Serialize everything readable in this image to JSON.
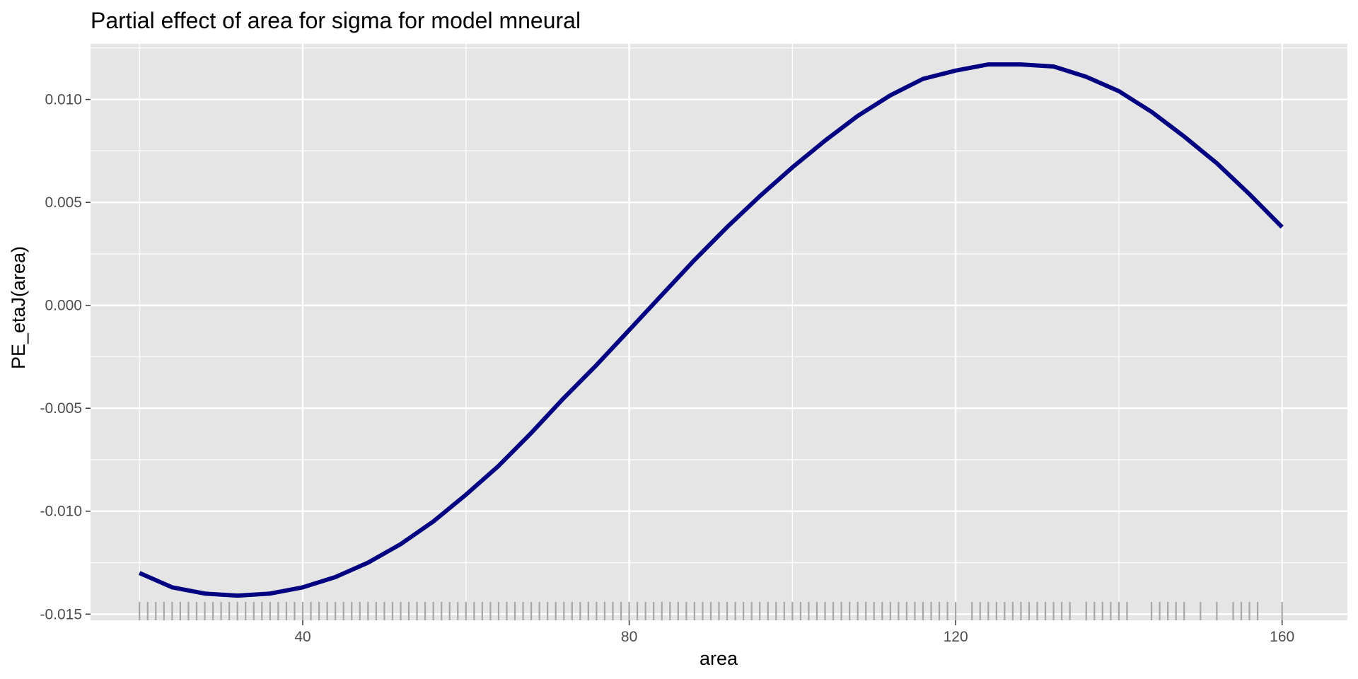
{
  "chart_data": {
    "type": "line",
    "title": "Partial effect of area for sigma for model mneural",
    "xlabel": "area",
    "ylabel": "PE_etaJ(area)",
    "xlim": [
      14,
      168
    ],
    "ylim": [
      -0.0153,
      0.0127
    ],
    "x_ticks": [
      40,
      80,
      120,
      160
    ],
    "y_ticks": [
      -0.015,
      -0.01,
      -0.005,
      0.0,
      0.005,
      0.01
    ],
    "x_tick_labels": [
      "40",
      "80",
      "120",
      "160"
    ],
    "y_tick_labels": [
      "-0.015",
      "-0.010",
      "-0.005",
      "0.000",
      "0.005",
      "0.010"
    ],
    "grid": true,
    "legend": "none",
    "colors": {
      "line": "#000080",
      "panel": "#e5e5e5",
      "grid": "#ffffff",
      "rug": "#a6a6a6",
      "tick_label": "#4d4d4d"
    },
    "series": [
      {
        "x": [
          20,
          24,
          28,
          32,
          36,
          40,
          44,
          48,
          52,
          56,
          60,
          64,
          68,
          72,
          76,
          80,
          84,
          88,
          92,
          96,
          100,
          104,
          108,
          112,
          116,
          120,
          124,
          128,
          132,
          136,
          140,
          144,
          148,
          152,
          156,
          160
        ],
        "values": [
          -0.013,
          -0.0137,
          -0.014,
          -0.0141,
          -0.014,
          -0.0137,
          -0.0132,
          -0.0125,
          -0.0116,
          -0.0105,
          -0.0092,
          -0.0078,
          -0.0062,
          -0.0045,
          -0.0029,
          -0.0012,
          0.0005,
          0.0022,
          0.0038,
          0.0053,
          0.0067,
          0.008,
          0.0092,
          0.0102,
          0.011,
          0.0114,
          0.0117,
          0.0117,
          0.0116,
          0.0111,
          0.0104,
          0.0094,
          0.0082,
          0.0069,
          0.0054,
          0.0038
        ]
      }
    ],
    "rug": [
      20,
      21,
      22,
      23,
      24,
      25,
      26,
      27,
      28,
      29,
      30,
      31,
      32,
      33,
      34,
      35,
      36,
      37,
      38,
      39,
      40,
      41,
      42,
      43,
      44,
      45,
      46,
      47,
      48,
      49,
      50,
      51,
      52,
      53,
      54,
      55,
      56,
      57,
      58,
      59,
      60,
      61,
      62,
      63,
      64,
      65,
      66,
      67,
      68,
      69,
      70,
      71,
      72,
      73,
      74,
      75,
      76,
      77,
      78,
      79,
      80,
      81,
      82,
      83,
      84,
      85,
      86,
      87,
      88,
      89,
      90,
      91,
      92,
      93,
      94,
      95,
      96,
      97,
      98,
      99,
      100,
      101,
      102,
      103,
      104,
      105,
      106,
      107,
      108,
      109,
      110,
      111,
      112,
      113,
      114,
      115,
      116,
      117,
      118,
      119,
      120,
      122,
      123,
      124,
      125,
      126,
      127,
      128,
      129,
      130,
      131,
      132,
      133,
      134,
      136,
      137,
      138,
      139,
      140,
      141,
      144,
      145,
      146,
      147,
      148,
      150,
      152,
      154,
      155,
      156,
      157,
      160
    ]
  }
}
